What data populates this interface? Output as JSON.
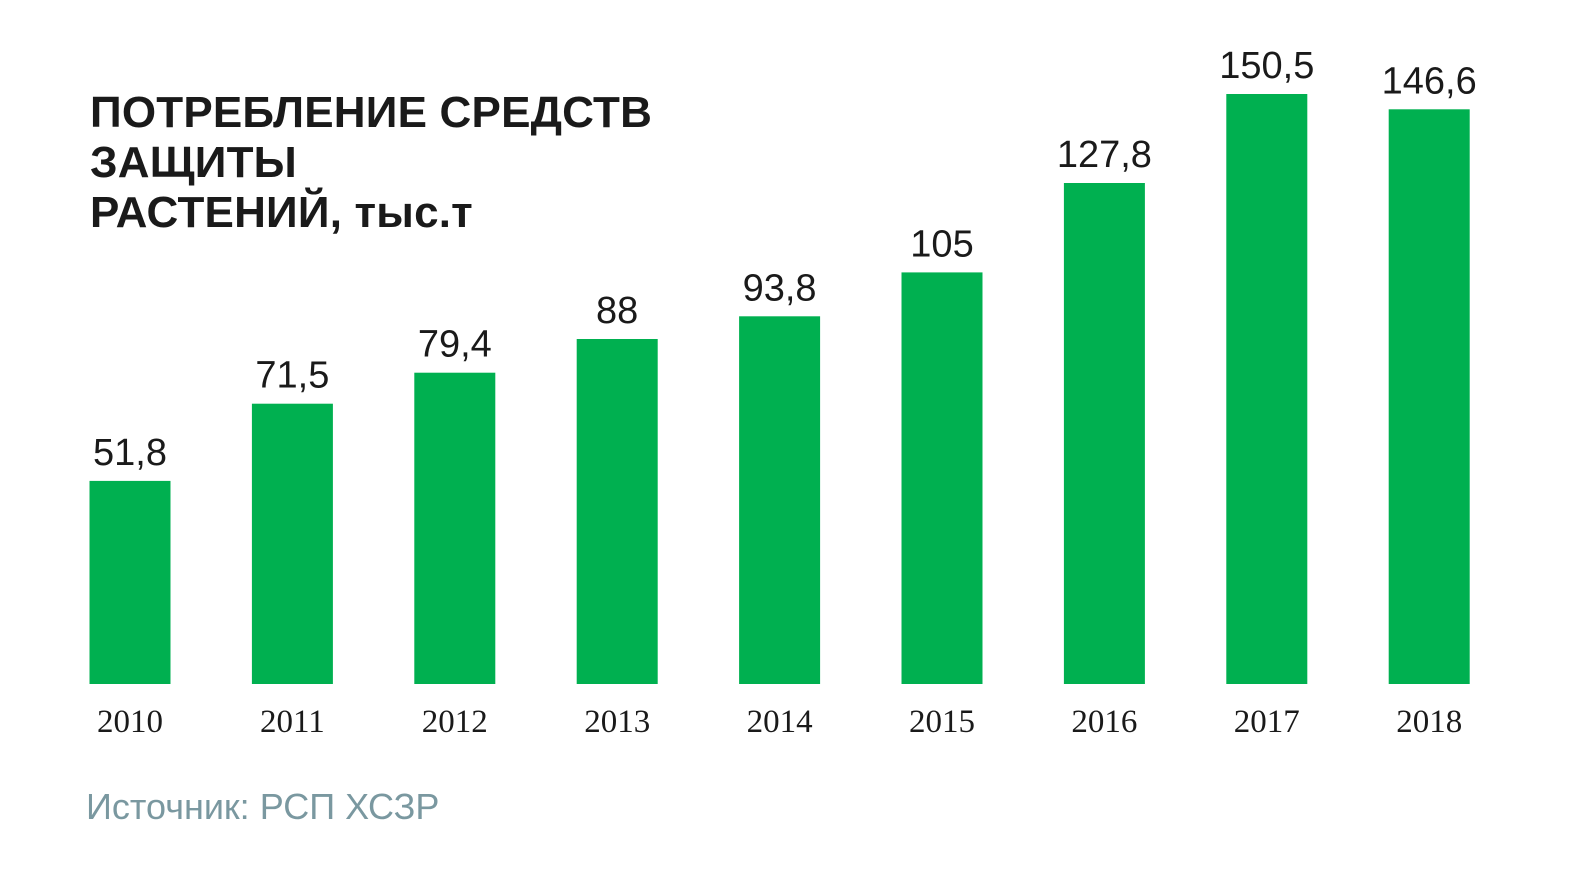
{
  "title_lines": [
    "ПОТРЕБЛЕНИЕ СРЕДСТВ ЗАЩИТЫ",
    "РАСТЕНИЙ, тыс.т"
  ],
  "source": "Источник: РСП ХСЗР",
  "colors": {
    "bar": "#00b050",
    "text": "#1a1a1a",
    "source_text": "#7a98a0"
  },
  "chart_data": {
    "type": "bar",
    "title": "ПОТРЕБЛЕНИЕ СРЕДСТВ ЗАЩИТЫ РАСТЕНИЙ, тыс.т",
    "categories": [
      "2010",
      "2011",
      "2012",
      "2013",
      "2014",
      "2015",
      "2016",
      "2017",
      "2018"
    ],
    "values": [
      51.8,
      71.5,
      79.4,
      88,
      93.8,
      105,
      127.8,
      150.5,
      146.6
    ],
    "value_labels": [
      "51,8",
      "71,5",
      "79,4",
      "88",
      "93,8",
      "105",
      "127,8",
      "150,5",
      "146,6"
    ],
    "xlabel": "",
    "ylabel": "",
    "ylim": [
      0,
      150.5
    ],
    "grid": false,
    "legend": "none"
  }
}
